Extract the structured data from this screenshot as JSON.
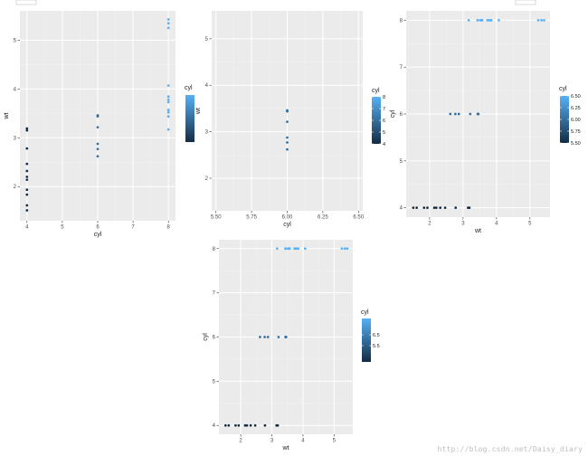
{
  "watermark": "http://blog.csdn.net/Daisy_diary",
  "colors": {
    "low": "#132B43",
    "high": "#56B1F7",
    "panel": "#EBEBEB",
    "grid_major": "#FFFFFF",
    "grid_minor": "#F3F3F3"
  },
  "chart_data": [
    {
      "type": "scatter",
      "xlabel": "cyl",
      "ylabel": "wt",
      "xlim": [
        3.8,
        8.2
      ],
      "ylim": [
        1.3,
        5.6
      ],
      "xticks": [
        4,
        5,
        6,
        7,
        8
      ],
      "xtick_labels": [
        "4",
        "5",
        "6",
        "7",
        "8"
      ],
      "yticks": [
        2,
        3,
        4,
        5
      ],
      "ytick_labels": [
        "2",
        "3",
        "4",
        "5"
      ],
      "color_by": "x",
      "legend": {
        "title": "cyl",
        "min": 4,
        "max": 8,
        "ticks": [],
        "tick_labels": [],
        "position": "right"
      },
      "grid": true,
      "points": [
        [
          4,
          2.32
        ],
        [
          4,
          3.19
        ],
        [
          4,
          3.15
        ],
        [
          4,
          2.2
        ],
        [
          4,
          1.615
        ],
        [
          4,
          1.835
        ],
        [
          4,
          2.465
        ],
        [
          4,
          1.935
        ],
        [
          4,
          2.14
        ],
        [
          4,
          1.513
        ],
        [
          4,
          2.78
        ],
        [
          6,
          2.62
        ],
        [
          6,
          2.875
        ],
        [
          6,
          3.215
        ],
        [
          6,
          3.46
        ],
        [
          6,
          3.44
        ],
        [
          6,
          3.44
        ],
        [
          6,
          2.77
        ],
        [
          8,
          3.44
        ],
        [
          8,
          3.57
        ],
        [
          8,
          4.07
        ],
        [
          8,
          3.73
        ],
        [
          8,
          3.78
        ],
        [
          8,
          5.25
        ],
        [
          8,
          5.424
        ],
        [
          8,
          5.345
        ],
        [
          8,
          3.52
        ],
        [
          8,
          3.435
        ],
        [
          8,
          3.84
        ],
        [
          8,
          3.845
        ],
        [
          8,
          3.17
        ],
        [
          8,
          3.57
        ]
      ]
    },
    {
      "type": "scatter",
      "xlabel": "cyl",
      "ylabel": "wt",
      "xlim": [
        5.47,
        6.53
      ],
      "ylim": [
        1.3,
        5.6
      ],
      "xticks": [
        5.5,
        5.75,
        6.0,
        6.25,
        6.5
      ],
      "xtick_labels": [
        "5.50",
        "5.75",
        "6.00",
        "6.25",
        "6.50"
      ],
      "yticks": [
        2,
        3,
        4,
        5
      ],
      "ytick_labels": [
        "2",
        "3",
        "4",
        "5"
      ],
      "color_by": "legend",
      "legend": {
        "title": "cyl",
        "min": 4,
        "max": 8,
        "ticks": [
          4,
          5,
          6,
          7,
          8
        ],
        "tick_labels": [
          "4",
          "5",
          "6",
          "7",
          "8"
        ],
        "position": "right"
      },
      "grid": true,
      "points": [
        [
          6,
          2.62
        ],
        [
          6,
          2.875
        ],
        [
          6,
          3.215
        ],
        [
          6,
          3.46
        ],
        [
          6,
          3.44
        ],
        [
          6,
          3.44
        ],
        [
          6,
          2.77
        ]
      ]
    },
    {
      "type": "scatter",
      "xlabel": "wt",
      "ylabel": "cyl",
      "xlim": [
        1.3,
        5.6
      ],
      "ylim": [
        3.8,
        8.2
      ],
      "xticks": [
        2,
        3,
        4,
        5
      ],
      "xtick_labels": [
        "2",
        "3",
        "4",
        "5"
      ],
      "yticks": [
        4,
        5,
        6,
        7,
        8
      ],
      "ytick_labels": [
        "4",
        "5",
        "6",
        "7",
        "8"
      ],
      "color_by": "y",
      "legend": {
        "title": "cyl",
        "min": 5.5,
        "max": 6.5,
        "ticks": [
          5.5,
          5.75,
          6.0,
          6.25,
          6.5
        ],
        "tick_labels": [
          "5.50",
          "5.75",
          "6.00",
          "6.25",
          "6.50"
        ],
        "position": "right"
      },
      "grid": true,
      "points": [
        [
          2.32,
          4
        ],
        [
          3.19,
          4
        ],
        [
          3.15,
          4
        ],
        [
          2.2,
          4
        ],
        [
          1.615,
          4
        ],
        [
          1.835,
          4
        ],
        [
          2.465,
          4
        ],
        [
          1.935,
          4
        ],
        [
          2.14,
          4
        ],
        [
          1.513,
          4
        ],
        [
          2.78,
          4
        ],
        [
          2.62,
          6
        ],
        [
          2.875,
          6
        ],
        [
          3.215,
          6
        ],
        [
          3.46,
          6
        ],
        [
          3.44,
          6
        ],
        [
          3.44,
          6
        ],
        [
          2.77,
          6
        ],
        [
          3.44,
          8
        ],
        [
          3.57,
          8
        ],
        [
          4.07,
          8
        ],
        [
          3.73,
          8
        ],
        [
          3.78,
          8
        ],
        [
          5.25,
          8
        ],
        [
          5.424,
          8
        ],
        [
          5.345,
          8
        ],
        [
          3.52,
          8
        ],
        [
          3.435,
          8
        ],
        [
          3.84,
          8
        ],
        [
          3.845,
          8
        ],
        [
          3.17,
          8
        ],
        [
          3.57,
          8
        ]
      ]
    },
    {
      "type": "scatter",
      "xlabel": "wt",
      "ylabel": "cyl",
      "xlim": [
        1.3,
        5.6
      ],
      "ylim": [
        3.8,
        8.2
      ],
      "xticks": [
        2,
        3,
        4,
        5
      ],
      "xtick_labels": [
        "2",
        "3",
        "4",
        "5"
      ],
      "yticks": [
        4,
        5,
        6,
        7,
        8
      ],
      "ytick_labels": [
        "4",
        "5",
        "6",
        "7",
        "8"
      ],
      "color_by": "y",
      "legend": {
        "title": "cyl",
        "min": 4,
        "max": 8,
        "ticks": [
          5.5,
          6.5
        ],
        "tick_labels": [
          "5.5",
          "6.5"
        ],
        "position": "right"
      },
      "grid": true,
      "points": [
        [
          2.32,
          4
        ],
        [
          3.19,
          4
        ],
        [
          3.15,
          4
        ],
        [
          2.2,
          4
        ],
        [
          1.615,
          4
        ],
        [
          1.835,
          4
        ],
        [
          2.465,
          4
        ],
        [
          1.935,
          4
        ],
        [
          2.14,
          4
        ],
        [
          1.513,
          4
        ],
        [
          2.78,
          4
        ],
        [
          2.62,
          6
        ],
        [
          2.875,
          6
        ],
        [
          3.215,
          6
        ],
        [
          3.46,
          6
        ],
        [
          3.44,
          6
        ],
        [
          3.44,
          6
        ],
        [
          2.77,
          6
        ],
        [
          3.44,
          8
        ],
        [
          3.57,
          8
        ],
        [
          4.07,
          8
        ],
        [
          3.73,
          8
        ],
        [
          3.78,
          8
        ],
        [
          5.25,
          8
        ],
        [
          5.424,
          8
        ],
        [
          5.345,
          8
        ],
        [
          3.52,
          8
        ],
        [
          3.435,
          8
        ],
        [
          3.84,
          8
        ],
        [
          3.845,
          8
        ],
        [
          3.17,
          8
        ],
        [
          3.57,
          8
        ]
      ]
    }
  ]
}
